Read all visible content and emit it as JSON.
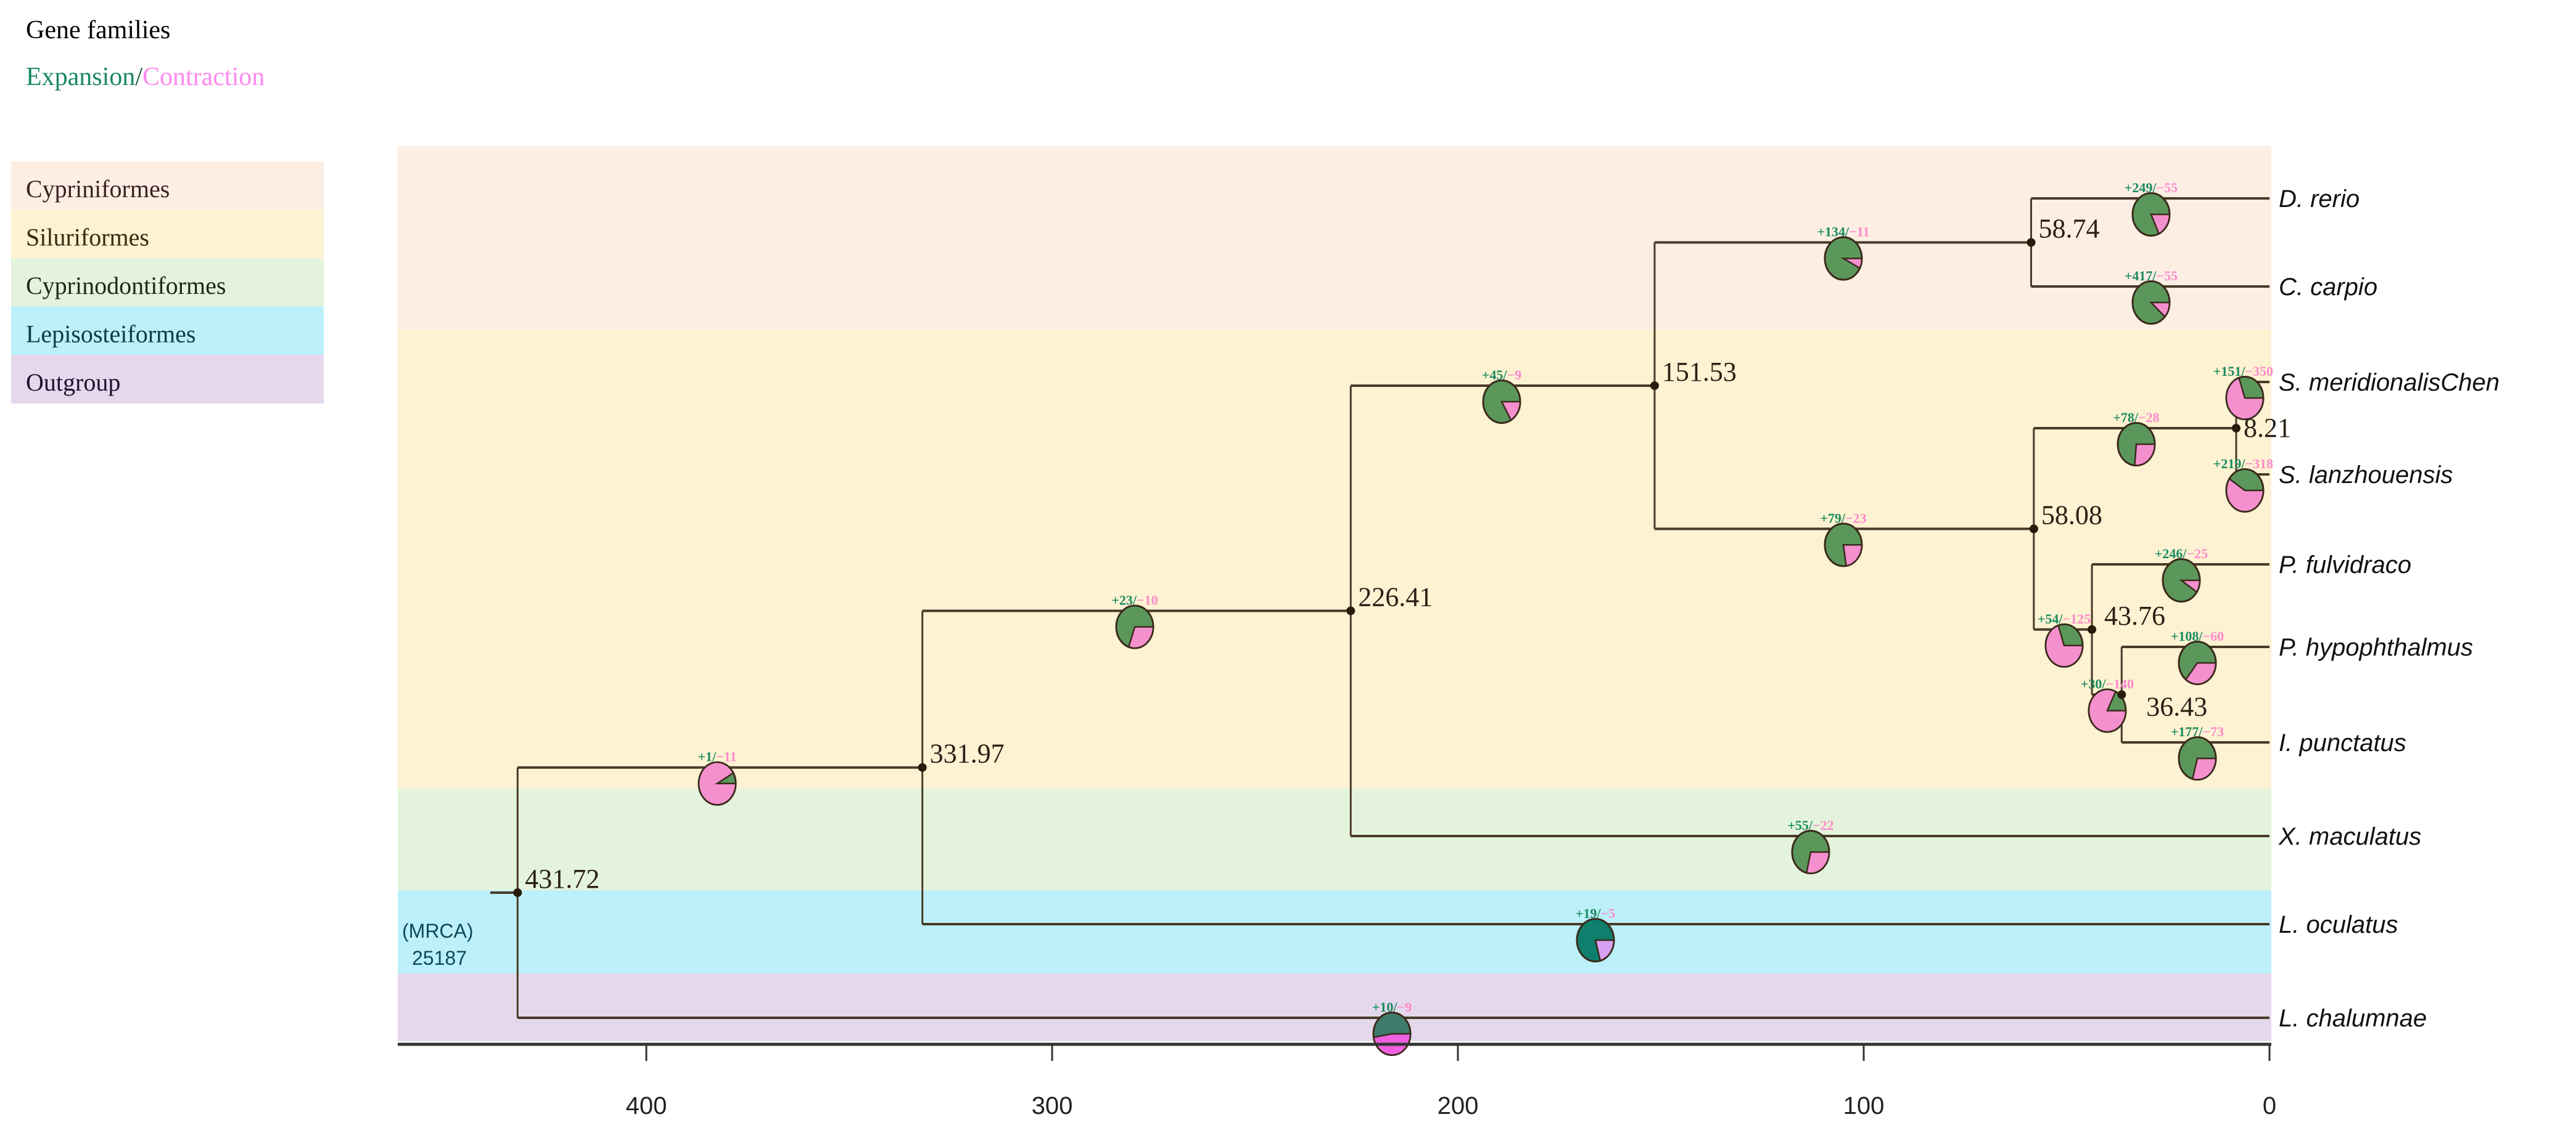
{
  "legend": {
    "title": "Gene families",
    "expansion_label": "Expansion",
    "separator": "/",
    "contraction_label": "Contraction",
    "groups": [
      {
        "name": "Cypriniformes",
        "color": "#fdeee4",
        "text_color": "#3a2020"
      },
      {
        "name": "Siluriformes",
        "color": "#fdf2d2",
        "text_color": "#3a2a10"
      },
      {
        "name": "Cyprinodontiformes",
        "color": "#e4f4dc",
        "text_color": "#1a2a1a"
      },
      {
        "name": "Lepisosteiformes",
        "color": "#bcf0fa",
        "text_color": "#0f3a4a"
      },
      {
        "name": "Outgroup",
        "color": "#e5d8ec",
        "text_color": "#201030"
      }
    ]
  },
  "colors": {
    "expansion": "#5b975b",
    "contraction": "#f590cf",
    "exp_text": "#1a8a5e",
    "con_text": "#ff88cc",
    "branch": "#4a3a28"
  },
  "mrca": {
    "label": "(MRCA)",
    "count": "25187"
  },
  "axis": {
    "ticks": [
      400,
      300,
      200,
      100,
      0
    ],
    "range": [
      460,
      0
    ]
  },
  "tree": {
    "age": 431.72,
    "children": [
      {
        "age": 331.97,
        "exp": 1,
        "con": 11,
        "children": [
          {
            "age": 226.41,
            "exp": 23,
            "con": 10,
            "children": [
              {
                "age": 151.53,
                "exp": 45,
                "con": 9,
                "children": [
                  {
                    "age": 58.74,
                    "exp": 134,
                    "con": 11,
                    "children": [
                      {
                        "tip": "D. rerio",
                        "group": "Cypriniformes",
                        "exp": 249,
                        "con": 55
                      },
                      {
                        "tip": "C. carpio",
                        "group": "Cypriniformes",
                        "exp": 417,
                        "con": 55
                      }
                    ]
                  },
                  {
                    "age": 58.08,
                    "exp": 79,
                    "con": 23,
                    "children": [
                      {
                        "age": 8.21,
                        "exp": 78,
                        "con": 28,
                        "children": [
                          {
                            "tip": "S. meridionalisChen",
                            "group": "Siluriformes",
                            "exp": 151,
                            "con": 350
                          },
                          {
                            "tip": "S. lanzhouensis",
                            "group": "Siluriformes",
                            "exp": 219,
                            "con": 318
                          }
                        ]
                      },
                      {
                        "age": 43.76,
                        "exp": 54,
                        "con": 125,
                        "children": [
                          {
                            "tip": "P. fulvidraco",
                            "group": "Siluriformes",
                            "exp": 246,
                            "con": 25
                          },
                          {
                            "age": 36.43,
                            "exp": 30,
                            "con": 140,
                            "children": [
                              {
                                "tip": "P. hypophthalmus",
                                "group": "Siluriformes",
                                "exp": 108,
                                "con": 60
                              },
                              {
                                "tip": "I. punctatus",
                                "group": "Siluriformes",
                                "exp": 177,
                                "con": 73
                              }
                            ]
                          }
                        ]
                      }
                    ]
                  }
                ]
              },
              {
                "tip": "X. maculatus",
                "group": "Cyprinodontiformes",
                "exp": 55,
                "con": 22
              }
            ]
          },
          {
            "tip": "L. oculatus",
            "group": "Lepisosteiformes",
            "exp": 19,
            "con": 5,
            "pie_colors": [
              "#0f7f6e",
              "#d8a0f0"
            ]
          }
        ]
      },
      {
        "tip": "L. chalumnae",
        "group": "Outgroup",
        "exp": 10,
        "con": 9,
        "pie_colors": [
          "#3f7a6c",
          "#f060e0"
        ]
      }
    ]
  }
}
